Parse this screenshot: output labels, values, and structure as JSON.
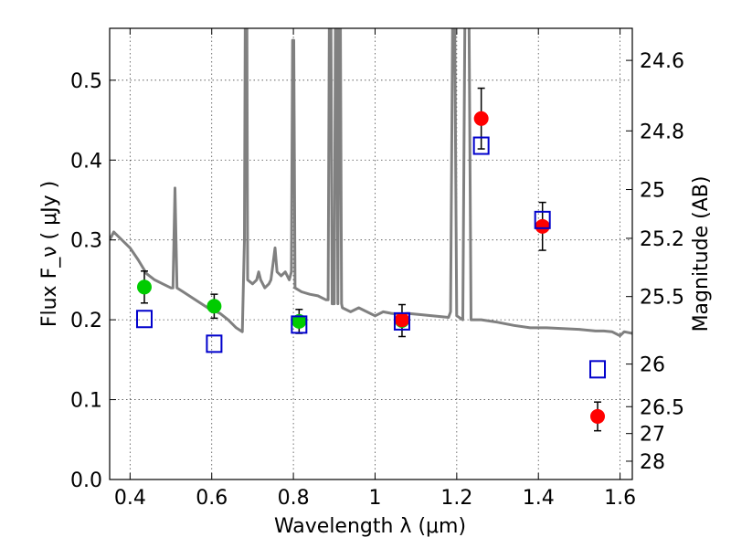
{
  "chart_data": {
    "type": "scatter",
    "title": "",
    "xlabel": "Wavelength  λ (μm)",
    "ylabel": "Flux  F_ν  ( μJy )",
    "y2label": "Magnitude (AB)",
    "xlim": [
      0.35,
      1.63
    ],
    "ylim": [
      0.0,
      0.565
    ],
    "grid": true,
    "x_ticks": [
      {
        "value": 0.4,
        "label": "0.4"
      },
      {
        "value": 0.6,
        "label": "0.6"
      },
      {
        "value": 0.8,
        "label": "0.8"
      },
      {
        "value": 1.0,
        "label": "1"
      },
      {
        "value": 1.2,
        "label": "1.2"
      },
      {
        "value": 1.4,
        "label": "1.4"
      },
      {
        "value": 1.6,
        "label": "1.6"
      }
    ],
    "y_ticks": [
      {
        "value": 0.0,
        "label": "0.0"
      },
      {
        "value": 0.1,
        "label": "0.1"
      },
      {
        "value": 0.2,
        "label": "0.2"
      },
      {
        "value": 0.3,
        "label": "0.3"
      },
      {
        "value": 0.4,
        "label": "0.4"
      },
      {
        "value": 0.5,
        "label": "0.5"
      }
    ],
    "y2_ticks": [
      {
        "value": 24.6,
        "label": "24.6"
      },
      {
        "value": 24.8,
        "label": "24.8"
      },
      {
        "value": 25.0,
        "label": "25"
      },
      {
        "value": 25.2,
        "label": "25.2"
      },
      {
        "value": 25.5,
        "label": "25.5"
      },
      {
        "value": 26.0,
        "label": "26"
      },
      {
        "value": 26.5,
        "label": "26.5"
      },
      {
        "value": 27.0,
        "label": "27"
      },
      {
        "value": 28.0,
        "label": "28"
      }
    ],
    "series": [
      {
        "kind": "line",
        "color": "#808080",
        "points": [
          [
            0.35,
            0.3
          ],
          [
            0.36,
            0.31
          ],
          [
            0.37,
            0.305
          ],
          [
            0.38,
            0.3
          ],
          [
            0.4,
            0.29
          ],
          [
            0.42,
            0.275
          ],
          [
            0.44,
            0.258
          ],
          [
            0.46,
            0.25
          ],
          [
            0.48,
            0.245
          ],
          [
            0.5,
            0.24
          ],
          [
            0.505,
            0.24
          ],
          [
            0.51,
            0.365
          ],
          [
            0.515,
            0.24
          ],
          [
            0.53,
            0.235
          ],
          [
            0.56,
            0.225
          ],
          [
            0.59,
            0.215
          ],
          [
            0.62,
            0.208
          ],
          [
            0.64,
            0.2
          ],
          [
            0.66,
            0.19
          ],
          [
            0.675,
            0.185
          ],
          [
            0.68,
            0.3
          ],
          [
            0.682,
            0.58
          ],
          [
            0.686,
            0.58
          ],
          [
            0.688,
            0.25
          ],
          [
            0.7,
            0.245
          ],
          [
            0.71,
            0.25
          ],
          [
            0.715,
            0.26
          ],
          [
            0.72,
            0.25
          ],
          [
            0.73,
            0.24
          ],
          [
            0.74,
            0.245
          ],
          [
            0.745,
            0.25
          ],
          [
            0.75,
            0.27
          ],
          [
            0.755,
            0.29
          ],
          [
            0.76,
            0.26
          ],
          [
            0.77,
            0.255
          ],
          [
            0.78,
            0.26
          ],
          [
            0.79,
            0.25
          ],
          [
            0.795,
            0.26
          ],
          [
            0.798,
            0.55
          ],
          [
            0.801,
            0.55
          ],
          [
            0.804,
            0.24
          ],
          [
            0.82,
            0.235
          ],
          [
            0.84,
            0.232
          ],
          [
            0.86,
            0.23
          ],
          [
            0.88,
            0.225
          ],
          [
            0.885,
            0.225
          ],
          [
            0.888,
            0.58
          ],
          [
            0.892,
            0.58
          ],
          [
            0.895,
            0.22
          ],
          [
            0.9,
            0.22
          ],
          [
            0.903,
            0.58
          ],
          [
            0.906,
            0.58
          ],
          [
            0.909,
            0.22
          ],
          [
            0.912,
            0.58
          ],
          [
            0.915,
            0.58
          ],
          [
            0.918,
            0.22
          ],
          [
            0.92,
            0.215
          ],
          [
            0.94,
            0.21
          ],
          [
            0.96,
            0.215
          ],
          [
            0.98,
            0.21
          ],
          [
            1.0,
            0.205
          ],
          [
            1.02,
            0.21
          ],
          [
            1.04,
            0.208
          ],
          [
            1.06,
            0.207
          ],
          [
            1.08,
            0.208
          ],
          [
            1.1,
            0.207
          ],
          [
            1.12,
            0.206
          ],
          [
            1.14,
            0.205
          ],
          [
            1.16,
            0.204
          ],
          [
            1.18,
            0.203
          ],
          [
            1.185,
            0.21
          ],
          [
            1.19,
            0.58
          ],
          [
            1.195,
            0.58
          ],
          [
            1.2,
            0.205
          ],
          [
            1.215,
            0.2
          ],
          [
            1.22,
            0.58
          ],
          [
            1.23,
            0.58
          ],
          [
            1.235,
            0.2
          ],
          [
            1.26,
            0.2
          ],
          [
            1.3,
            0.197
          ],
          [
            1.34,
            0.193
          ],
          [
            1.38,
            0.19
          ],
          [
            1.42,
            0.19
          ],
          [
            1.46,
            0.189
          ],
          [
            1.5,
            0.188
          ],
          [
            1.54,
            0.186
          ],
          [
            1.56,
            0.186
          ],
          [
            1.58,
            0.185
          ],
          [
            1.6,
            0.18
          ],
          [
            1.61,
            0.185
          ],
          [
            1.63,
            0.183
          ]
        ]
      },
      {
        "kind": "points",
        "marker": "circle",
        "color": "#00cc00",
        "points": [
          {
            "x": 0.435,
            "y": 0.241,
            "err": 0.02
          },
          {
            "x": 0.606,
            "y": 0.217,
            "err": 0.015
          },
          {
            "x": 0.814,
            "y": 0.198,
            "err": 0.015
          },
          {
            "x": 1.066,
            "y": 0.199,
            "err": 0.02
          }
        ]
      },
      {
        "kind": "points",
        "marker": "circle",
        "color": "#ff0000",
        "points": [
          {
            "x": 1.066,
            "y": 0.2
          },
          {
            "x": 1.26,
            "y": 0.452,
            "err": 0.038
          },
          {
            "x": 1.41,
            "y": 0.317,
            "err": 0.03
          },
          {
            "x": 1.545,
            "y": 0.079,
            "err": 0.018
          }
        ]
      },
      {
        "kind": "points",
        "marker": "square-open",
        "color": "#0000cc",
        "points": [
          {
            "x": 0.435,
            "y": 0.201
          },
          {
            "x": 0.606,
            "y": 0.17
          },
          {
            "x": 0.814,
            "y": 0.194
          },
          {
            "x": 1.066,
            "y": 0.198
          },
          {
            "x": 1.26,
            "y": 0.418
          },
          {
            "x": 1.41,
            "y": 0.325
          },
          {
            "x": 1.545,
            "y": 0.138
          }
        ]
      }
    ]
  }
}
